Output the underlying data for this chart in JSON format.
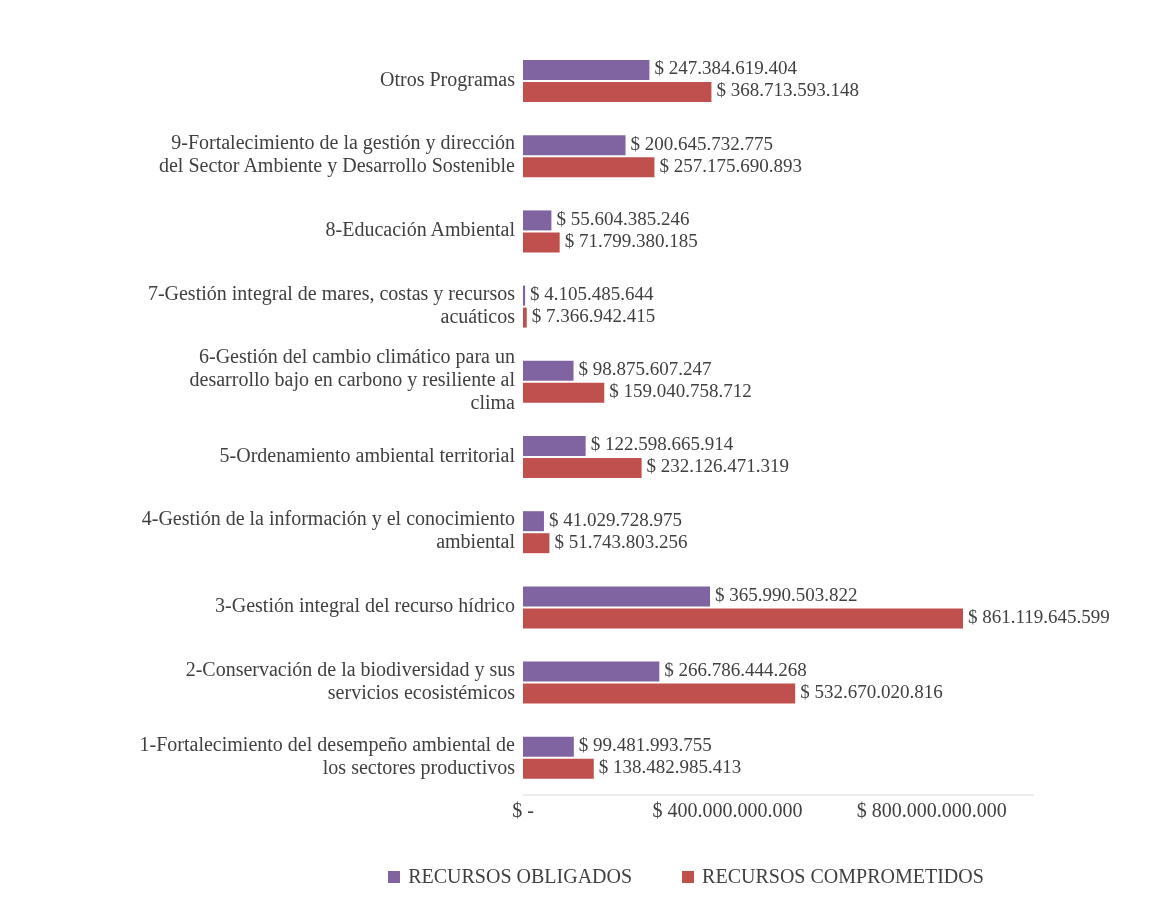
{
  "chart_data": {
    "type": "bar",
    "orientation": "horizontal",
    "categories": [
      "Otros Programas",
      "9-Fortalecimiento de la gestión y dirección del Sector Ambiente y Desarrollo Sostenible",
      "8-Educación Ambiental",
      "7-Gestión integral de mares, costas y recursos acuáticos",
      "6-Gestión del cambio climático para un desarrollo bajo en carbono y resiliente al clima",
      "5-Ordenamiento ambiental territorial",
      "4-Gestión de la información y el conocimiento ambiental",
      "3-Gestión integral del recurso hídrico",
      "2-Conservación de la biodiversidad y sus servicios ecosistémicos",
      "1-Fortalecimiento del desempeño ambiental de los sectores productivos"
    ],
    "series": [
      {
        "name": "RECURSOS OBLIGADOS",
        "color": "#8064a2",
        "values": [
          247384619404,
          200645732775,
          55604385246,
          4105485644,
          98875607247,
          122598665914,
          41029728975,
          365990503822,
          266786444268,
          99481993755
        ],
        "value_labels": [
          "$ 247.384.619.404",
          "$ 200.645.732.775",
          "$ 55.604.385.246",
          "$ 4.105.485.644",
          "$ 98.875.607.247",
          "$ 122.598.665.914",
          "$ 41.029.728.975",
          "$ 365.990.503.822",
          "$ 266.786.444.268",
          "$ 99.481.993.755"
        ]
      },
      {
        "name": "RECURSOS COMPROMETIDOS",
        "color": "#c0504d",
        "values": [
          368713593148,
          257175690893,
          71799380185,
          7366942415,
          159040758712,
          232126471319,
          51743803256,
          861119645599,
          532670020816,
          138482985413
        ],
        "value_labels": [
          "$ 368.713.593.148",
          "$ 257.175.690.893",
          "$ 71.799.380.185",
          "$ 7.366.942.415",
          "$ 159.040.758.712",
          "$ 232.126.471.319",
          "$ 51.743.803.256",
          "$ 861.119.645.599",
          "$ 532.670.020.816",
          "$ 138.482.985.413"
        ]
      }
    ],
    "xticks": [
      {
        "value": 0,
        "label": "$ -"
      },
      {
        "value": 400000000000,
        "label": "$ 400.000.000.000"
      },
      {
        "value": 800000000000,
        "label": "$ 800.000.000.000"
      }
    ],
    "xlim": [
      0,
      1000000000000
    ],
    "legend": "bottom"
  }
}
